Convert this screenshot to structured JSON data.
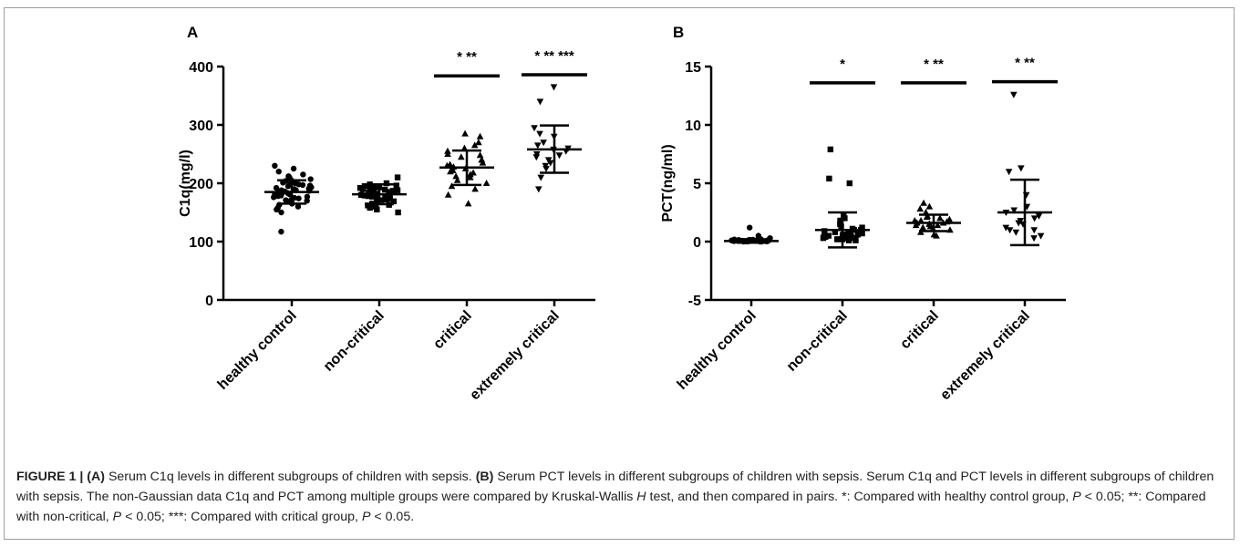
{
  "caption": {
    "label": "FIGURE 1 |",
    "a_marker": "(A)",
    "a_text": "Serum C1q levels in different subgroups of children with sepsis.",
    "b_marker": "(B)",
    "b_text": "Serum PCT levels in different subgroups of children with sepsis. Serum C1q and PCT levels in different subgroups of children with sepsis. The non-Gaussian data C1q and PCT among multiple groups were compared by Kruskal-Wallis",
    "h_italic": "H",
    "text_2": "test, and then compared in pairs. *: Compared with healthy control group,",
    "p1": "P",
    "text_3": "< 0.05; **: Compared with non-critical,",
    "p2": "P",
    "text_4": "< 0.05; ***: Compared with critical group,",
    "p3": "P",
    "text_5": "< 0.05."
  },
  "chart_data": [
    {
      "panel_label": "A",
      "type": "scatter",
      "title": "",
      "xlabel": "",
      "ylabel": "C1q(mg/l)",
      "ylim": [
        0,
        400
      ],
      "yticks": [
        0,
        100,
        200,
        300,
        400
      ],
      "grid": false,
      "categories": [
        "healthy control",
        "non-critical",
        "critical",
        "extremely critical"
      ],
      "markers": [
        "circle",
        "square",
        "triangle-up",
        "triangle-down"
      ],
      "means": [
        185,
        181,
        227,
        258
      ],
      "sd_upper": [
        205,
        198,
        256,
        299
      ],
      "sd_lower": [
        165,
        164,
        197,
        218
      ],
      "significance": [
        "",
        "",
        "* **",
        "* ** ***"
      ],
      "significance_bar_y": [
        null,
        null,
        384,
        386
      ],
      "points": [
        [
          205,
          175,
          192,
          188,
          210,
          165,
          180,
          170,
          200,
          195,
          185,
          215,
          160,
          230,
          172,
          183,
          198,
          178,
          190,
          168,
          220,
          176,
          187,
          207,
          155,
          181,
          196,
          163,
          212,
          189,
          174,
          201,
          184,
          193,
          169,
          179,
          225,
          186,
          158,
          197,
          171,
          204,
          182,
          191,
          150,
          177,
          199,
          117,
          188,
          183
        ],
        [
          185,
          172,
          195,
          178,
          168,
          190,
          180,
          160,
          200,
          175,
          188,
          165,
          182,
          193,
          170,
          187,
          176,
          155,
          198,
          184,
          163,
          179,
          191,
          174,
          186,
          150,
          196,
          169,
          181,
          189,
          171,
          192,
          177,
          185,
          162,
          194,
          173,
          183,
          158,
          210
        ],
        [
          230,
          245,
          210,
          260,
          220,
          200,
          285,
          240,
          215,
          225,
          195,
          270,
          235,
          205,
          250,
          222,
          190,
          265,
          218,
          240,
          212,
          280,
          228,
          180,
          232,
          255,
          165,
          248
        ],
        [
          260,
          340,
          280,
          245,
          230,
          365,
          250,
          240,
          270,
          225,
          255,
          285,
          210,
          295,
          248,
          265,
          235,
          190,
          258
        ]
      ]
    },
    {
      "panel_label": "B",
      "type": "scatter",
      "title": "",
      "xlabel": "",
      "ylabel": "PCT(ng/ml)",
      "ylim": [
        -5,
        15
      ],
      "yticks": [
        -5,
        0,
        5,
        10,
        15
      ],
      "grid": false,
      "categories": [
        "healthy control",
        "non-critical",
        "critical",
        "extremely critical"
      ],
      "markers": [
        "circle",
        "square",
        "triangle-up",
        "triangle-down"
      ],
      "means": [
        0.05,
        1.0,
        1.6,
        2.5
      ],
      "sd_upper": [
        0.2,
        2.5,
        2.3,
        5.3
      ],
      "sd_lower": [
        -0.1,
        -0.5,
        0.9,
        -0.3
      ],
      "significance": [
        "",
        "*",
        "* **",
        "* **"
      ],
      "significance_bar_y": [
        null,
        13.6,
        13.6,
        13.7
      ],
      "points": [
        [
          0.05,
          0.1,
          0.0,
          0.15,
          0.2,
          0.05,
          0.1,
          0.0,
          0.12,
          0.08,
          0.02,
          0.18,
          0.06,
          0.1,
          0.04,
          0.14,
          0.0,
          0.09,
          0.07,
          0.11,
          0.03,
          0.16,
          0.05,
          0.12,
          0.01,
          0.08,
          0.1,
          0.06,
          0.13,
          0.04,
          0.5,
          1.2,
          0.3,
          0.02,
          0.09
        ],
        [
          0.2,
          0.5,
          1.0,
          0.8,
          0.3,
          1.2,
          0.6,
          0.1,
          1.5,
          0.4,
          0.9,
          2.0,
          0.7,
          0.2,
          1.1,
          0.3,
          0.5,
          1.8,
          0.6,
          0.4,
          0.9,
          0.2,
          1.3,
          0.7,
          0.1,
          0.5,
          5.0,
          5.4,
          7.9,
          2.2,
          0.8,
          0.3,
          1.0,
          0.6,
          0.4
        ],
        [
          1.5,
          1.8,
          2.0,
          1.2,
          1.6,
          2.5,
          1.0,
          1.4,
          3.0,
          1.7,
          0.8,
          2.2,
          1.3,
          1.9,
          0.5,
          1.6,
          2.8,
          1.1,
          3.3,
          1.5,
          0.6,
          2.1,
          1.8,
          1.4
        ],
        [
          2.0,
          1.5,
          3.0,
          0.5,
          6.0,
          6.3,
          12.6,
          1.8,
          2.5,
          1.0,
          0.3,
          2.2,
          1.2,
          4.0,
          0.8,
          1.6,
          2.7,
          1.0
        ]
      ]
    }
  ]
}
